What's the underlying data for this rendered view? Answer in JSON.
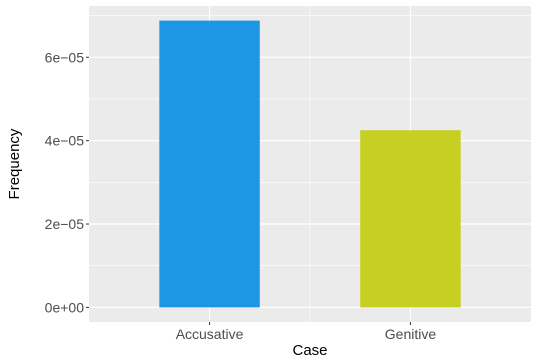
{
  "chart_data": {
    "type": "bar",
    "title": "",
    "xlabel": "Case",
    "ylabel": "Frequency",
    "categories": [
      "Accusative",
      "Genitive"
    ],
    "values": [
      6.88e-05,
      4.25e-05
    ],
    "bar_colors": [
      "#1d97e3",
      "#c5d023"
    ],
    "ylim": [
      -3.5e-06,
      7.23e-05
    ],
    "y_ticks": [
      {
        "value": 0,
        "label": "0e+00"
      },
      {
        "value": 2e-05,
        "label": "2e−05"
      },
      {
        "value": 4e-05,
        "label": "4e−05"
      },
      {
        "value": 6e-05,
        "label": "6e−05"
      }
    ],
    "grid": true,
    "legend": "none",
    "panel_background": "#ebebeb",
    "gridline_color": "#ffffff"
  }
}
